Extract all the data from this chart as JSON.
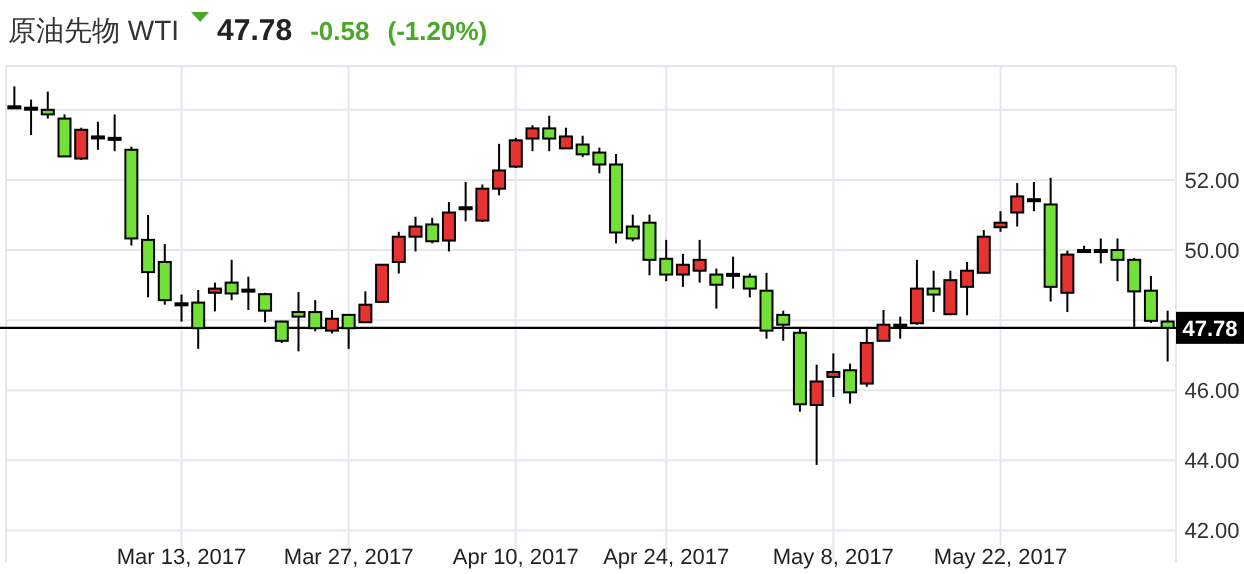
{
  "chart_data": {
    "type": "candlestick",
    "title": "原油先物 WTI",
    "annotations": [
      "47.78",
      "-0.58",
      "(-1.20%)"
    ],
    "categories": [
      null,
      null,
      null,
      null,
      null,
      null,
      null,
      null,
      null,
      null,
      "Mar 13, 2017",
      null,
      null,
      null,
      null,
      null,
      null,
      null,
      null,
      null,
      "Mar 27, 2017",
      null,
      null,
      null,
      null,
      null,
      null,
      null,
      null,
      null,
      "Apr 10, 2017",
      null,
      null,
      null,
      null,
      null,
      null,
      null,
      null,
      "Apr 24, 2017",
      null,
      null,
      null,
      null,
      null,
      null,
      null,
      null,
      null,
      "May 8, 2017",
      null,
      null,
      null,
      null,
      null,
      null,
      null,
      null,
      null,
      "May 22, 2017",
      null,
      null,
      null,
      null,
      null,
      null,
      null,
      null,
      null,
      null
    ],
    "ohlc": [
      [
        54.1,
        54.67,
        54.04,
        54.08
      ],
      [
        54.06,
        54.29,
        53.28,
        54.04
      ],
      [
        54.0,
        54.52,
        53.75,
        53.87
      ],
      [
        53.75,
        53.87,
        52.67,
        52.67
      ],
      [
        52.61,
        53.49,
        52.57,
        53.43
      ],
      [
        53.24,
        53.66,
        52.86,
        53.22
      ],
      [
        53.2,
        53.87,
        52.82,
        53.18
      ],
      [
        52.86,
        52.95,
        50.13,
        50.33
      ],
      [
        50.29,
        51.0,
        48.65,
        49.37
      ],
      [
        49.66,
        50.17,
        48.44,
        48.57
      ],
      [
        48.48,
        48.73,
        47.96,
        48.47
      ],
      [
        48.5,
        48.86,
        47.18,
        47.77
      ],
      [
        48.78,
        49.07,
        48.25,
        48.9
      ],
      [
        49.07,
        49.72,
        48.57,
        48.76
      ],
      [
        48.87,
        49.24,
        48.29,
        48.86
      ],
      [
        48.74,
        48.78,
        47.94,
        48.27
      ],
      [
        47.96,
        47.98,
        47.35,
        47.41
      ],
      [
        48.23,
        48.8,
        47.11,
        48.1
      ],
      [
        48.23,
        48.57,
        47.68,
        47.77
      ],
      [
        47.7,
        48.29,
        47.62,
        48.04
      ],
      [
        48.15,
        48.15,
        47.18,
        47.77
      ],
      [
        47.94,
        48.82,
        47.94,
        48.44
      ],
      [
        48.52,
        49.58,
        48.52,
        49.58
      ],
      [
        49.66,
        50.52,
        49.33,
        50.38
      ],
      [
        50.38,
        50.95,
        49.96,
        50.67
      ],
      [
        50.73,
        50.92,
        50.19,
        50.25
      ],
      [
        50.27,
        51.37,
        49.96,
        51.07
      ],
      [
        51.22,
        51.94,
        50.82,
        51.21
      ],
      [
        50.84,
        51.87,
        50.8,
        51.75
      ],
      [
        51.75,
        53.03,
        51.56,
        52.27
      ],
      [
        52.38,
        53.2,
        52.34,
        53.13
      ],
      [
        53.18,
        53.56,
        52.82,
        53.47
      ],
      [
        53.47,
        53.83,
        52.82,
        53.18
      ],
      [
        52.9,
        53.49,
        52.9,
        53.24
      ],
      [
        53.01,
        53.26,
        52.65,
        52.73
      ],
      [
        52.78,
        52.92,
        52.19,
        52.44
      ],
      [
        52.44,
        52.74,
        50.19,
        50.5
      ],
      [
        50.67,
        51.01,
        50.25,
        50.33
      ],
      [
        50.78,
        51.01,
        49.28,
        49.72
      ],
      [
        49.75,
        50.29,
        49.11,
        49.3
      ],
      [
        49.3,
        49.89,
        48.95,
        49.58
      ],
      [
        49.41,
        50.29,
        49.07,
        49.72
      ],
      [
        49.3,
        49.47,
        48.33,
        49.01
      ],
      [
        49.32,
        49.81,
        48.9,
        49.31
      ],
      [
        49.24,
        49.33,
        48.65,
        48.9
      ],
      [
        48.84,
        49.35,
        47.47,
        47.7
      ],
      [
        48.15,
        48.27,
        47.41,
        47.87
      ],
      [
        47.64,
        47.81,
        45.39,
        45.6
      ],
      [
        45.58,
        46.73,
        43.87,
        46.25
      ],
      [
        46.38,
        47.05,
        45.81,
        46.52
      ],
      [
        46.57,
        46.76,
        45.62,
        45.94
      ],
      [
        46.19,
        47.81,
        46.1,
        47.35
      ],
      [
        47.41,
        48.29,
        47.41,
        47.87
      ],
      [
        47.87,
        48.1,
        47.47,
        47.86
      ],
      [
        47.91,
        49.72,
        47.87,
        48.9
      ],
      [
        48.9,
        49.41,
        48.23,
        48.73
      ],
      [
        48.17,
        49.41,
        48.14,
        49.14
      ],
      [
        48.95,
        49.66,
        48.14,
        49.41
      ],
      [
        49.35,
        50.57,
        49.35,
        50.38
      ],
      [
        50.65,
        51.11,
        50.52,
        50.78
      ],
      [
        51.07,
        51.91,
        50.67,
        51.53
      ],
      [
        51.45,
        51.94,
        51.11,
        51.44
      ],
      [
        51.3,
        52.06,
        48.53,
        48.95
      ],
      [
        48.78,
        49.98,
        48.23,
        49.87
      ],
      [
        50.0,
        50.12,
        49.94,
        49.99
      ],
      [
        50.0,
        50.33,
        49.62,
        49.99
      ],
      [
        50.0,
        50.33,
        49.11,
        49.72
      ],
      [
        49.72,
        49.77,
        47.81,
        48.82
      ],
      [
        48.84,
        49.26,
        47.92,
        47.98
      ],
      [
        47.96,
        48.27,
        46.82,
        47.78
      ]
    ],
    "colors": [
      "#000000",
      "#000000",
      "#73e038",
      "#73e038",
      "#e5342f",
      "#000000",
      "#000000",
      "#73e038",
      "#73e038",
      "#73e038",
      "#000000",
      "#73e038",
      "#e5342f",
      "#73e038",
      "#000000",
      "#73e038",
      "#73e038",
      "#73e038",
      "#73e038",
      "#e5342f",
      "#73e038",
      "#e5342f",
      "#e5342f",
      "#e5342f",
      "#e5342f",
      "#73e038",
      "#e5342f",
      "#000000",
      "#e5342f",
      "#e5342f",
      "#e5342f",
      "#e5342f",
      "#73e038",
      "#e5342f",
      "#73e038",
      "#73e038",
      "#73e038",
      "#73e038",
      "#73e038",
      "#73e038",
      "#e5342f",
      "#e5342f",
      "#73e038",
      "#000000",
      "#73e038",
      "#73e038",
      "#73e038",
      "#73e038",
      "#e5342f",
      "#e5342f",
      "#73e038",
      "#e5342f",
      "#e5342f",
      "#000000",
      "#e5342f",
      "#73e038",
      "#e5342f",
      "#e5342f",
      "#e5342f",
      "#e5342f",
      "#e5342f",
      "#000000",
      "#73e038",
      "#e5342f",
      "#000000",
      "#000000",
      "#73e038",
      "#73e038",
      "#73e038",
      "#73e038"
    ],
    "ylim": [
      41.1,
      55.25
    ],
    "yticks": [
      {
        "value": 42,
        "label": "42.00"
      },
      {
        "value": 44,
        "label": "44.00"
      },
      {
        "value": 46,
        "label": "46.00"
      },
      {
        "value": 48,
        "label": null
      },
      {
        "value": 50,
        "label": "50.00"
      },
      {
        "value": 52,
        "label": "52.00"
      },
      {
        "value": 54,
        "label": null
      }
    ],
    "ref_lines": [
      {
        "axis": "y",
        "value": 47.78,
        "label": "47.78",
        "color": "#000000"
      }
    ],
    "grid": true
  }
}
